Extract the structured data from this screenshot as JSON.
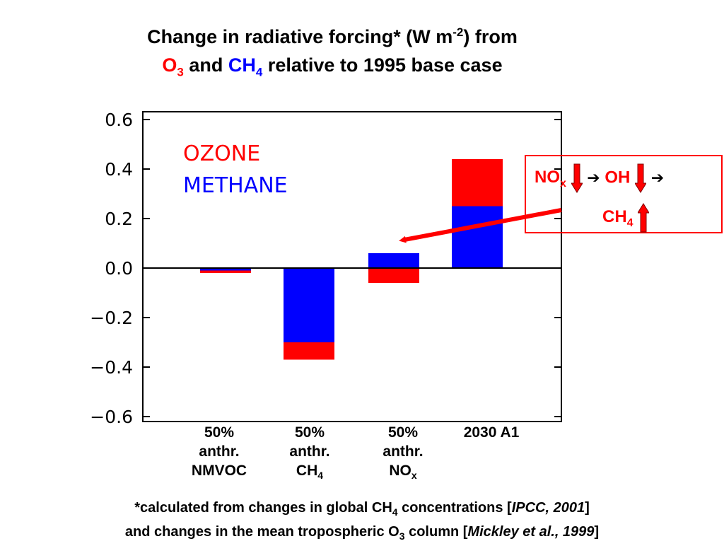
{
  "title": {
    "line1": "Change in radiative forcing* (W m",
    "line1_sup": "-2",
    "line1_end": ") from",
    "o3_main": "O",
    "o3_sub": "3",
    "and": " and ",
    "ch4_main": "CH",
    "ch4_sub": "4",
    "line2_end": " relative to 1995 base case"
  },
  "legend": {
    "ozone": "OZONE",
    "methane": "METHANE"
  },
  "x_labels": [
    {
      "l1": "50%",
      "l2": "anthr.",
      "l3": "NMVOC",
      "l3_sub": ""
    },
    {
      "l1": "50%",
      "l2": "anthr.",
      "l3": "CH",
      "l3_sub": "4"
    },
    {
      "l1": "50%",
      "l2": "anthr.",
      "l3": "NO",
      "l3_sub": "x"
    },
    {
      "l1": "2030 A1",
      "l2": "",
      "l3": "",
      "l3_sub": ""
    }
  ],
  "callout": {
    "nox": "NO",
    "nox_sub": "x",
    "arrow1": "➔",
    "oh": "OH",
    "arrow2": "➔",
    "ch4": "CH",
    "ch4_sub": "4",
    "colors": {
      "border": "#ff0000",
      "text": "#ff0000",
      "arrow_fill": "#ff0000"
    }
  },
  "footnote": {
    "p1": "*calculated from changes in global CH",
    "p1_sub": "4",
    "p2": " concentrations [",
    "p2_cite": "IPCC, 2001",
    "p2_end": "]",
    "p3": "and changes in the mean tropospheric O",
    "p3_sub": "3",
    "p4": " column [",
    "p4_cite": "Mickley et al., 1999",
    "p4_end": "]"
  },
  "chart_data": {
    "type": "bar",
    "stacked": true,
    "categories": [
      "50% anthr. NMVOC",
      "50% anthr. CH4",
      "50% anthr. NOx",
      "2030 A1"
    ],
    "series": [
      {
        "name": "METHANE",
        "color": "#0000ff",
        "values": [
          -0.01,
          -0.3,
          0.06,
          0.25
        ]
      },
      {
        "name": "OZONE",
        "color": "#ff0000",
        "values": [
          -0.01,
          -0.07,
          -0.06,
          0.19
        ]
      }
    ],
    "ylim": [
      -0.6,
      0.6
    ],
    "yticks": [
      0.6,
      0.4,
      0.2,
      0.0,
      -0.2,
      -0.4,
      -0.6
    ],
    "ytick_labels": [
      "0.6",
      "0.4",
      "0.2",
      "0.0",
      "−0.2",
      "−0.4",
      "−0.6"
    ],
    "zero_line": true,
    "grid": false,
    "legend_position": "top-left"
  }
}
